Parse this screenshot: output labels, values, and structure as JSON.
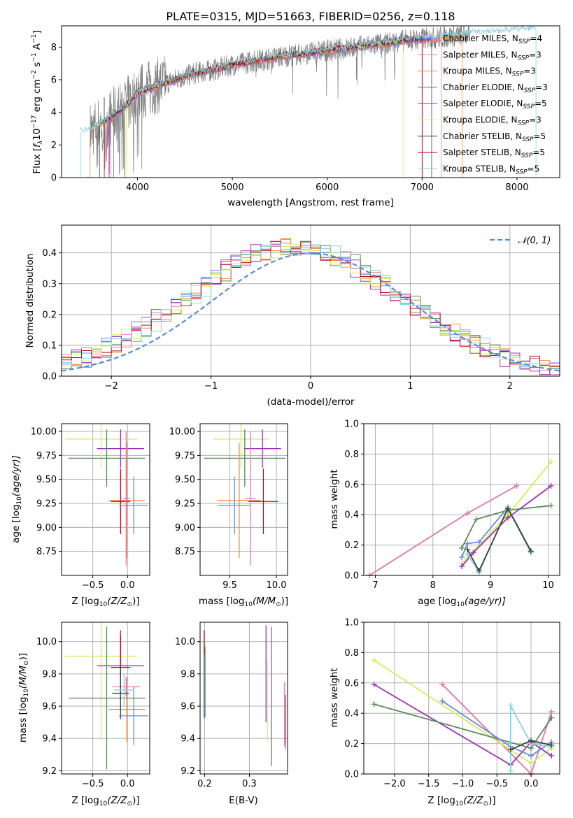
{
  "colors": {
    "chabrier_miles": "#6a8be0",
    "salpeter_miles": "#e07fb0",
    "kroupa_miles": "#f08a3c",
    "chabrier_elodie": "#5a8a5a",
    "salpeter_elodie": "#9a33b8",
    "kroupa_elodie": "#d8ec5a",
    "chabrier_stelib": "#404040",
    "salpeter_stelib": "#b01020",
    "kroupa_stelib": "#88d4dc",
    "data_grey": "#808080",
    "gauss": "#5b8ad6",
    "grid": "#b0b0b0"
  },
  "chart_data": [
    {
      "id": "spectrum",
      "type": "line",
      "title": "PLATE=0315, MJD=51663, FIBERID=0256, z=0.118",
      "xlabel": "wavelength [Angstrom, rest frame]",
      "ylabel_main": "Flux [",
      "ylabel_f": "f",
      "ylabel_lam": "λ",
      "ylabel_unit": "10",
      "ylabel_exp1": "−17",
      "ylabel_rest": " erg cm",
      "ylabel_exp2": "−2",
      "ylabel_s": " s",
      "ylabel_exp3": "−1",
      "ylabel_A": " A",
      "ylabel_exp4": "−1",
      "ylabel_close": "]",
      "xlim": [
        3200,
        8450
      ],
      "ylim": [
        0,
        9.3
      ],
      "xticks": [
        "4000",
        "5000",
        "6000",
        "7000",
        "8000"
      ],
      "yticks": [
        "0",
        "2",
        "4",
        "6",
        "8"
      ],
      "legend_position": "top-right",
      "model_x": [
        3400,
        3500,
        3700,
        3900,
        4000,
        4200,
        4400,
        4600,
        4800,
        5000,
        5200,
        5400,
        5600,
        5800,
        6000,
        6200,
        6400,
        6600,
        6800,
        7000,
        7200,
        7500,
        7800,
        8000,
        8200
      ],
      "model_y": [
        2.8,
        2.9,
        3.6,
        4.5,
        5.2,
        5.6,
        6.0,
        6.4,
        6.6,
        6.9,
        7.1,
        7.3,
        7.5,
        7.6,
        7.8,
        7.9,
        8.1,
        8.2,
        8.4,
        8.5,
        8.6,
        8.8,
        8.9,
        9.0,
        9.1
      ],
      "legend": [
        {
          "imf": "Chabrier MILES, N",
          "sub": "SSP",
          "n": "=4",
          "color": "#6a8be0"
        },
        {
          "imf": "Salpeter MILES, N",
          "sub": "SSP",
          "n": "=3",
          "color": "#e07fb0"
        },
        {
          "imf": "Kroupa MILES, N",
          "sub": "SSP",
          "n": "=3",
          "color": "#f08a3c"
        },
        {
          "imf": "Chabrier ELODIE, N",
          "sub": "SSP",
          "n": "=3",
          "color": "#5a8a5a"
        },
        {
          "imf": "Salpeter ELODIE, N",
          "sub": "SSP",
          "n": "=5",
          "color": "#9a33b8"
        },
        {
          "imf": "Kroupa ELODIE, N",
          "sub": "SSP",
          "n": "=3",
          "color": "#d8ec5a"
        },
        {
          "imf": "Chabrier STELIB, N",
          "sub": "SSP",
          "n": "=5",
          "color": "#404040"
        },
        {
          "imf": "Salpeter STELIB, N",
          "sub": "SSP",
          "n": "=5",
          "color": "#b01020"
        },
        {
          "imf": "Kroupa STELIB, N",
          "sub": "SSP",
          "n": "=5",
          "color": "#88d4dc"
        }
      ]
    },
    {
      "id": "residuals",
      "type": "line",
      "xlabel": "(data-model)/error",
      "ylabel": "Normed distribution",
      "xlim": [
        -2.5,
        2.5
      ],
      "ylim": [
        0,
        0.49
      ],
      "xticks": [
        "−2",
        "−1",
        "0",
        "1",
        "2"
      ],
      "xtick_values": [
        -2,
        -1,
        0,
        1,
        2
      ],
      "yticks": [
        "0.0",
        "0.1",
        "0.2",
        "0.3",
        "0.4"
      ],
      "ytick_values": [
        0,
        0.1,
        0.2,
        0.3,
        0.4
      ],
      "grid": true,
      "legend_label": "𝒩(0, 1)",
      "bin_width": 0.1
    },
    {
      "id": "age_vs_Z",
      "type": "scatter",
      "xlabel": "Z [log",
      "xlabel_sub": "10",
      "xlabel_rest": "(Z/Z",
      "xlabel_sun": "⊙",
      "xlabel_close": ")]",
      "ylabel": "age  [log",
      "ylabel_sub": "10",
      "ylabel_rest": "(age/yr)]",
      "xlim": [
        -0.95,
        0.32
      ],
      "ylim": [
        8.5,
        10.08
      ],
      "xticks": [
        "−0.5",
        "0.0"
      ],
      "xtick_values": [
        -0.5,
        0.0
      ],
      "yticks": [
        "8.75",
        "9.00",
        "9.25",
        "9.50",
        "9.75",
        "10.00"
      ],
      "ytick_values": [
        8.75,
        9.0,
        9.25,
        9.5,
        9.75,
        10.0
      ],
      "grid": true,
      "points": [
        {
          "x": -0.38,
          "y": 9.92,
          "xerr": 0.52,
          "yerr": 0.3,
          "color": "#d8ec5a"
        },
        {
          "x": -0.1,
          "y": 9.82,
          "xerr": 0.34,
          "yerr": 0.2,
          "color": "#9a33b8"
        },
        {
          "x": -0.3,
          "y": 9.72,
          "xerr": 0.55,
          "yerr": 0.3,
          "color": "#5a8a5a"
        },
        {
          "x": -0.01,
          "y": 9.28,
          "xerr": 0.26,
          "yerr": 0.6,
          "color": "#f08a3c"
        },
        {
          "x": -0.1,
          "y": 9.27,
          "xerr": 0.14,
          "yerr": 0.34,
          "color": "#b01020"
        },
        {
          "x": 0.09,
          "y": 9.23,
          "xerr": 0.21,
          "yerr": 0.3,
          "color": "#6a8be0"
        },
        {
          "x": -0.02,
          "y": 9.3,
          "xerr": 0.05,
          "yerr": 0.7,
          "color": "#e07fb0"
        }
      ]
    },
    {
      "id": "age_vs_mass",
      "type": "scatter",
      "xlabel": "mass [log",
      "xlabel_sub": "10",
      "xlabel_rest": "(M/M",
      "xlabel_sun": "⊙",
      "xlabel_close": ")]",
      "xlim": [
        9.18,
        10.12
      ],
      "ylim": [
        8.5,
        10.08
      ],
      "xticks": [
        "9.5",
        "10.0"
      ],
      "xtick_values": [
        9.5,
        10.0
      ],
      "yticks": [
        "8.75",
        "9.00",
        "9.25",
        "9.50",
        "9.75",
        "10.00"
      ],
      "ytick_values": [
        8.75,
        9.0,
        9.25,
        9.5,
        9.75,
        10.0
      ],
      "grid": true,
      "points": [
        {
          "x": 9.62,
          "y": 9.92,
          "xerr": 0.3,
          "yerr": 0.3,
          "color": "#d8ec5a"
        },
        {
          "x": 9.85,
          "y": 9.82,
          "xerr": 0.2,
          "yerr": 0.2,
          "color": "#9a33b8"
        },
        {
          "x": 9.66,
          "y": 9.72,
          "xerr": 0.44,
          "yerr": 0.3,
          "color": "#5a8a5a"
        },
        {
          "x": 9.6,
          "y": 9.28,
          "xerr": 0.23,
          "yerr": 0.6,
          "color": "#f08a3c"
        },
        {
          "x": 9.86,
          "y": 9.27,
          "xerr": 0.16,
          "yerr": 0.34,
          "color": "#b01020"
        },
        {
          "x": 9.55,
          "y": 9.23,
          "xerr": 0.18,
          "yerr": 0.3,
          "color": "#6a8be0"
        },
        {
          "x": 9.72,
          "y": 9.3,
          "xerr": 0.06,
          "yerr": 0.7,
          "color": "#e07fb0"
        }
      ]
    },
    {
      "id": "massweight_vs_age",
      "type": "line",
      "xlabel": "age  [log",
      "xlabel_sub": "10",
      "xlabel_rest": "(age/yr)]",
      "ylabel": "mass weight",
      "xlim": [
        6.8,
        10.2
      ],
      "ylim": [
        0,
        1.0
      ],
      "xticks": [
        "7",
        "8",
        "9",
        "10"
      ],
      "xtick_values": [
        7,
        8,
        9,
        10
      ],
      "yticks": [
        "0.0",
        "0.2",
        "0.4",
        "0.6",
        "0.8",
        "1.0"
      ],
      "ytick_values": [
        0,
        0.2,
        0.4,
        0.6,
        0.8,
        1.0
      ],
      "grid": true,
      "series": [
        {
          "color": "#f08a3c",
          "x": [
            6.9,
            8.6,
            9.45
          ],
          "y": [
            0.0,
            0.41,
            0.59
          ]
        },
        {
          "color": "#e07fb0",
          "x": [
            6.9,
            8.6,
            9.45
          ],
          "y": [
            0.0,
            0.41,
            0.59
          ]
        },
        {
          "color": "#d8ec5a",
          "x": [
            8.5,
            9.3,
            10.05
          ],
          "y": [
            0.08,
            0.4,
            0.75
          ]
        },
        {
          "color": "#9a33b8",
          "x": [
            8.5,
            8.7,
            9.3,
            10.05
          ],
          "y": [
            0.06,
            0.15,
            0.38,
            0.59
          ]
        },
        {
          "color": "#5a8a5a",
          "x": [
            8.5,
            8.75,
            9.3,
            10.05
          ],
          "y": [
            0.18,
            0.37,
            0.43,
            0.46
          ]
        },
        {
          "color": "#6a8be0",
          "x": [
            8.5,
            8.6,
            8.8,
            9.3,
            9.7
          ],
          "y": [
            0.12,
            0.21,
            0.22,
            0.45,
            0.16
          ]
        },
        {
          "color": "#88d4dc",
          "x": [
            8.6,
            8.8,
            9.3,
            9.7
          ],
          "y": [
            0.14,
            0.02,
            0.45,
            0.15
          ]
        },
        {
          "color": "#404040",
          "x": [
            8.6,
            8.8,
            9.3,
            9.7
          ],
          "y": [
            0.17,
            0.03,
            0.44,
            0.16
          ]
        }
      ]
    },
    {
      "id": "mass_vs_Z",
      "type": "scatter",
      "xlabel": "Z [log",
      "xlabel_sub": "10",
      "xlabel_rest": "(Z/Z",
      "xlabel_sun": "⊙",
      "xlabel_close": ")]",
      "ylabel": "mass [log",
      "ylabel_sub": "10",
      "ylabel_rest": "(M/M",
      "ylabel_sun": "⊙",
      "ylabel_close": ")]",
      "xlim": [
        -0.95,
        0.32
      ],
      "ylim": [
        9.18,
        10.12
      ],
      "xticks": [
        "−0.5",
        "0.0"
      ],
      "xtick_values": [
        -0.5,
        0.0
      ],
      "yticks": [
        "9.2",
        "9.4",
        "9.6",
        "9.8",
        "10.0"
      ],
      "ytick_values": [
        9.2,
        9.4,
        9.6,
        9.8,
        10.0
      ],
      "grid": true,
      "points": [
        {
          "x": -0.38,
          "y": 9.91,
          "xerr": 0.52,
          "yerr": 0.52,
          "color": "#d8ec5a"
        },
        {
          "x": -0.1,
          "y": 9.85,
          "xerr": 0.34,
          "yerr": 0.22,
          "color": "#9a33b8"
        },
        {
          "x": -0.3,
          "y": 9.65,
          "xerr": 0.55,
          "yerr": 0.44,
          "color": "#5a8a5a"
        },
        {
          "x": -0.01,
          "y": 9.58,
          "xerr": 0.26,
          "yerr": 0.2,
          "color": "#f08a3c"
        },
        {
          "x": -0.1,
          "y": 9.84,
          "xerr": 0.14,
          "yerr": 0.2,
          "color": "#b01020"
        },
        {
          "x": 0.09,
          "y": 9.54,
          "xerr": 0.21,
          "yerr": 0.18,
          "color": "#6a8be0"
        },
        {
          "x": -0.02,
          "y": 9.72,
          "xerr": 0.2,
          "yerr": 0.06,
          "color": "#e07fb0"
        },
        {
          "x": -0.1,
          "y": 9.68,
          "xerr": 0.12,
          "yerr": 0.16,
          "color": "#404040"
        },
        {
          "x": -0.05,
          "y": 9.7,
          "xerr": 0.14,
          "yerr": 0.1,
          "color": "#88d4dc"
        }
      ]
    },
    {
      "id": "mass_vs_ebv",
      "type": "scatter",
      "xlabel": "E(B-V)",
      "xlim": [
        0.19,
        0.385
      ],
      "ylim": [
        9.18,
        10.12
      ],
      "xticks": [
        "0.2",
        "0.3"
      ],
      "xtick_values": [
        0.2,
        0.3
      ],
      "yticks": [
        "9.2",
        "9.4",
        "9.6",
        "9.8",
        "10.0"
      ],
      "ytick_values": [
        9.2,
        9.4,
        9.6,
        9.8,
        10.0
      ],
      "grid": true,
      "points": [
        {
          "x": 0.199,
          "y": 9.8,
          "xerr": 0.0,
          "yerr": 0.27,
          "color": "#b01020"
        },
        {
          "x": 0.2,
          "y": 9.72,
          "xerr": 0.0,
          "yerr": 0.2,
          "color": "#6a8be0"
        },
        {
          "x": 0.201,
          "y": 9.75,
          "xerr": 0.0,
          "yerr": 0.22,
          "color": "#5a8a5a"
        },
        {
          "x": 0.337,
          "y": 9.8,
          "xerr": 0.0,
          "yerr": 0.3,
          "color": "#9a33b8"
        },
        {
          "x": 0.34,
          "y": 9.63,
          "xerr": 0.0,
          "yerr": 0.25,
          "color": "#d8ec5a"
        },
        {
          "x": 0.349,
          "y": 9.66,
          "xerr": 0.0,
          "yerr": 0.43,
          "color": "#5a8a5a"
        },
        {
          "x": 0.378,
          "y": 9.55,
          "xerr": 0.0,
          "yerr": 0.2,
          "color": "#e07fb0"
        },
        {
          "x": 0.38,
          "y": 9.52,
          "xerr": 0.0,
          "yerr": 0.15,
          "color": "#f08a3c"
        },
        {
          "x": 0.381,
          "y": 9.5,
          "xerr": 0.0,
          "yerr": 0.17,
          "color": "#6a8be0"
        }
      ]
    },
    {
      "id": "massweight_vs_Z",
      "type": "line",
      "xlabel": "Z [log",
      "xlabel_sub": "10",
      "xlabel_rest": "(Z/Z",
      "xlabel_sun": "⊙",
      "xlabel_close": ")]",
      "ylabel": "mass weight",
      "xlim": [
        -2.45,
        0.42
      ],
      "ylim": [
        0,
        1.0
      ],
      "xticks": [
        "−2.0",
        "−1.5",
        "−1.0",
        "−0.5",
        "0.0"
      ],
      "xtick_values": [
        -2.0,
        -1.5,
        -1.0,
        -0.5,
        0.0
      ],
      "yticks": [
        "0.0",
        "0.2",
        "0.4",
        "0.6",
        "0.8",
        "1.0"
      ],
      "ytick_values": [
        0,
        0.2,
        0.4,
        0.6,
        0.8,
        1.0
      ],
      "grid": true,
      "series": [
        {
          "color": "#f08a3c",
          "x": [
            -1.3,
            0.0,
            0.3
          ],
          "y": [
            0.59,
            0.0,
            0.41
          ]
        },
        {
          "color": "#e07fb0",
          "x": [
            -1.3,
            0.0,
            0.3
          ],
          "y": [
            0.59,
            0.0,
            0.41
          ]
        },
        {
          "color": "#d8ec5a",
          "x": [
            -2.3,
            0.0,
            0.3
          ],
          "y": [
            0.75,
            0.07,
            0.17
          ]
        },
        {
          "color": "#9a33b8",
          "x": [
            -2.3,
            -0.3,
            0.0,
            0.3
          ],
          "y": [
            0.59,
            0.06,
            0.21,
            0.12
          ]
        },
        {
          "color": "#5a8a5a",
          "x": [
            -2.3,
            0.0,
            0.3
          ],
          "y": [
            0.46,
            0.17,
            0.37
          ]
        },
        {
          "color": "#6a8be0",
          "x": [
            -1.3,
            -0.3,
            0.0,
            0.3
          ],
          "y": [
            0.48,
            0.18,
            0.12,
            0.21
          ]
        },
        {
          "color": "#88d4dc",
          "x": [
            -0.3,
            -0.3,
            0.0,
            0.3
          ],
          "y": [
            0.02,
            0.45,
            0.2,
            0.18
          ]
        },
        {
          "color": "#404040",
          "x": [
            -0.3,
            0.0,
            0.3
          ],
          "y": [
            0.16,
            0.22,
            0.19
          ]
        }
      ]
    }
  ]
}
